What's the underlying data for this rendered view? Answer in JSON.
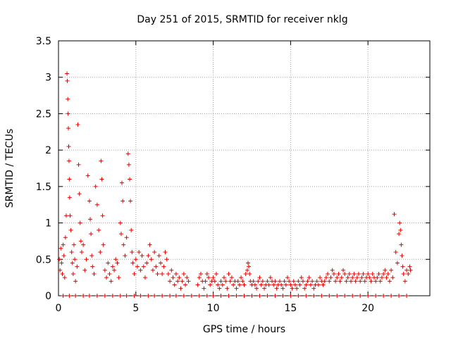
{
  "chart_data": {
    "type": "scatter",
    "title": "Day 251 of 2015, SRMTID for receiver nklg",
    "xlabel": "GPS time / hours",
    "ylabel": "SRMTID / TECUs",
    "xlim": [
      0,
      24
    ],
    "ylim": [
      0,
      3.5
    ],
    "xticks": [
      0,
      5,
      10,
      15,
      20
    ],
    "yticks": [
      0,
      0.5,
      1,
      1.5,
      2,
      2.5,
      3,
      3.5
    ],
    "xtick_labels": [
      "0",
      "5",
      "10",
      "15",
      "20"
    ],
    "ytick_labels": [
      "0",
      "0.5",
      "1",
      "1.5",
      "2",
      "2.5",
      "3",
      "3.5"
    ],
    "grid": true,
    "marker": "+",
    "marker_color": "#e60000",
    "series": [
      {
        "name": "SRMTID",
        "points": [
          [
            0.05,
            0.5
          ],
          [
            0.1,
            0.35
          ],
          [
            0.15,
            0.65
          ],
          [
            0.2,
            0.45
          ],
          [
            0.25,
            0.3
          ],
          [
            0.3,
            0.7
          ],
          [
            0.35,
            0.55
          ],
          [
            0.4,
            0.25
          ],
          [
            0.45,
            0.8
          ],
          [
            0.5,
            1.1
          ],
          [
            0.55,
            3.05
          ],
          [
            0.57,
            2.95
          ],
          [
            0.6,
            2.7
          ],
          [
            0.62,
            2.5
          ],
          [
            0.64,
            2.3
          ],
          [
            0.66,
            2.05
          ],
          [
            0.68,
            1.85
          ],
          [
            0.7,
            1.6
          ],
          [
            0.72,
            1.35
          ],
          [
            0.75,
            1.1
          ],
          [
            0.8,
            0.9
          ],
          [
            0.85,
            0.6
          ],
          [
            0.9,
            0.45
          ],
          [
            0.95,
            0.3
          ],
          [
            1.0,
            0.7
          ],
          [
            1.05,
            0.5
          ],
          [
            1.1,
            0.2
          ],
          [
            1.2,
            0.4
          ],
          [
            1.25,
            2.35
          ],
          [
            1.3,
            1.8
          ],
          [
            1.35,
            1.4
          ],
          [
            1.4,
            1.0
          ],
          [
            1.45,
            0.75
          ],
          [
            1.5,
            0.6
          ],
          [
            1.6,
            0.7
          ],
          [
            1.7,
            0.35
          ],
          [
            1.8,
            0.5
          ],
          [
            1.9,
            1.65
          ],
          [
            2.0,
            1.3
          ],
          [
            2.05,
            1.05
          ],
          [
            2.1,
            0.85
          ],
          [
            2.15,
            0.55
          ],
          [
            2.2,
            0.4
          ],
          [
            2.3,
            0.3
          ],
          [
            2.4,
            1.5
          ],
          [
            2.5,
            1.25
          ],
          [
            2.6,
            0.9
          ],
          [
            2.7,
            0.6
          ],
          [
            2.75,
            1.85
          ],
          [
            2.8,
            1.6
          ],
          [
            2.85,
            1.1
          ],
          [
            2.9,
            0.7
          ],
          [
            3.0,
            0.35
          ],
          [
            3.1,
            0.25
          ],
          [
            3.2,
            0.45
          ],
          [
            3.3,
            0.3
          ],
          [
            3.4,
            0.2
          ],
          [
            3.5,
            0.4
          ],
          [
            3.6,
            0.35
          ],
          [
            3.7,
            0.5
          ],
          [
            3.8,
            0.45
          ],
          [
            3.9,
            0.25
          ],
          [
            4.0,
            1.0
          ],
          [
            4.05,
            0.85
          ],
          [
            4.1,
            1.55
          ],
          [
            4.15,
            1.3
          ],
          [
            4.2,
            0.7
          ],
          [
            4.3,
            0.55
          ],
          [
            4.4,
            0.8
          ],
          [
            4.5,
            1.95
          ],
          [
            4.55,
            1.8
          ],
          [
            4.6,
            1.6
          ],
          [
            4.65,
            1.3
          ],
          [
            4.7,
            0.9
          ],
          [
            4.75,
            0.6
          ],
          [
            4.8,
            0.45
          ],
          [
            4.9,
            0.3
          ],
          [
            5.0,
            0.5
          ],
          [
            5.1,
            0.4
          ],
          [
            5.2,
            0.6
          ],
          [
            5.3,
            0.35
          ],
          [
            5.4,
            0.55
          ],
          [
            5.5,
            0.4
          ],
          [
            5.6,
            0.25
          ],
          [
            5.7,
            0.45
          ],
          [
            5.8,
            0.55
          ],
          [
            5.9,
            0.7
          ],
          [
            6.0,
            0.5
          ],
          [
            6.1,
            0.35
          ],
          [
            6.2,
            0.6
          ],
          [
            6.3,
            0.4
          ],
          [
            6.4,
            0.3
          ],
          [
            6.5,
            0.55
          ],
          [
            6.6,
            0.45
          ],
          [
            6.7,
            0.3
          ],
          [
            6.8,
            0.4
          ],
          [
            6.9,
            0.6
          ],
          [
            7.0,
            0.5
          ],
          [
            7.1,
            0.3
          ],
          [
            7.2,
            0.2
          ],
          [
            7.3,
            0.35
          ],
          [
            7.4,
            0.25
          ],
          [
            7.5,
            0.15
          ],
          [
            7.6,
            0.3
          ],
          [
            7.7,
            0.2
          ],
          [
            7.8,
            0.25
          ],
          [
            7.9,
            0.1
          ],
          [
            8.0,
            0.2
          ],
          [
            8.1,
            0.3
          ],
          [
            8.2,
            0.15
          ],
          [
            8.3,
            0.25
          ],
          [
            8.4,
            0.2
          ],
          [
            9.0,
            0.15
          ],
          [
            9.1,
            0.25
          ],
          [
            9.2,
            0.3
          ],
          [
            9.3,
            0.2
          ],
          [
            9.4,
            0.1
          ],
          [
            9.5,
            0.2
          ],
          [
            9.6,
            0.3
          ],
          [
            9.7,
            0.25
          ],
          [
            9.8,
            0.15
          ],
          [
            9.9,
            0.2
          ],
          [
            10.0,
            0.25
          ],
          [
            10.1,
            0.2
          ],
          [
            10.2,
            0.3
          ],
          [
            10.3,
            0.15
          ],
          [
            10.4,
            0.1
          ],
          [
            10.5,
            0.2
          ],
          [
            10.6,
            0.15
          ],
          [
            10.7,
            0.25
          ],
          [
            10.8,
            0.2
          ],
          [
            10.9,
            0.1
          ],
          [
            11.0,
            0.3
          ],
          [
            11.1,
            0.2
          ],
          [
            11.2,
            0.25
          ],
          [
            11.3,
            0.15
          ],
          [
            11.4,
            0.2
          ],
          [
            11.5,
            0.1
          ],
          [
            11.6,
            0.2
          ],
          [
            11.7,
            0.15
          ],
          [
            11.8,
            0.25
          ],
          [
            11.9,
            0.2
          ],
          [
            12.0,
            0.15
          ],
          [
            12.1,
            0.3
          ],
          [
            12.2,
            0.35
          ],
          [
            12.25,
            0.45
          ],
          [
            12.3,
            0.4
          ],
          [
            12.35,
            0.3
          ],
          [
            12.4,
            0.2
          ],
          [
            12.5,
            0.15
          ],
          [
            12.6,
            0.2
          ],
          [
            12.7,
            0.15
          ],
          [
            12.8,
            0.1
          ],
          [
            12.9,
            0.2
          ],
          [
            13.0,
            0.25
          ],
          [
            13.1,
            0.15
          ],
          [
            13.2,
            0.2
          ],
          [
            13.3,
            0.1
          ],
          [
            13.4,
            0.15
          ],
          [
            13.5,
            0.2
          ],
          [
            13.6,
            0.15
          ],
          [
            13.7,
            0.25
          ],
          [
            13.8,
            0.2
          ],
          [
            13.9,
            0.15
          ],
          [
            14.0,
            0.2
          ],
          [
            14.1,
            0.1
          ],
          [
            14.2,
            0.15
          ],
          [
            14.3,
            0.2
          ],
          [
            14.4,
            0.15
          ],
          [
            14.5,
            0.1
          ],
          [
            14.6,
            0.2
          ],
          [
            14.7,
            0.15
          ],
          [
            14.8,
            0.25
          ],
          [
            14.9,
            0.2
          ],
          [
            15.0,
            0.15
          ],
          [
            15.1,
            0.1
          ],
          [
            15.2,
            0.2
          ],
          [
            15.3,
            0.15
          ],
          [
            15.4,
            0.1
          ],
          [
            15.5,
            0.2
          ],
          [
            15.6,
            0.15
          ],
          [
            15.7,
            0.25
          ],
          [
            15.8,
            0.2
          ],
          [
            15.9,
            0.1
          ],
          [
            16.0,
            0.15
          ],
          [
            16.1,
            0.2
          ],
          [
            16.2,
            0.25
          ],
          [
            16.3,
            0.15
          ],
          [
            16.4,
            0.2
          ],
          [
            16.5,
            0.1
          ],
          [
            16.6,
            0.15
          ],
          [
            16.7,
            0.2
          ],
          [
            16.8,
            0.15
          ],
          [
            16.9,
            0.25
          ],
          [
            17.0,
            0.2
          ],
          [
            17.1,
            0.15
          ],
          [
            17.2,
            0.2
          ],
          [
            17.3,
            0.25
          ],
          [
            17.4,
            0.3
          ],
          [
            17.5,
            0.2
          ],
          [
            17.6,
            0.25
          ],
          [
            17.7,
            0.35
          ],
          [
            17.8,
            0.3
          ],
          [
            17.9,
            0.2
          ],
          [
            18.0,
            0.25
          ],
          [
            18.1,
            0.3
          ],
          [
            18.2,
            0.2
          ],
          [
            18.3,
            0.25
          ],
          [
            18.4,
            0.35
          ],
          [
            18.5,
            0.3
          ],
          [
            18.6,
            0.2
          ],
          [
            18.7,
            0.25
          ],
          [
            18.8,
            0.3
          ],
          [
            18.9,
            0.2
          ],
          [
            19.0,
            0.25
          ],
          [
            19.1,
            0.3
          ],
          [
            19.2,
            0.2
          ],
          [
            19.3,
            0.25
          ],
          [
            19.4,
            0.3
          ],
          [
            19.5,
            0.2
          ],
          [
            19.6,
            0.25
          ],
          [
            19.7,
            0.3
          ],
          [
            19.8,
            0.2
          ],
          [
            19.9,
            0.25
          ],
          [
            20.0,
            0.3
          ],
          [
            20.1,
            0.25
          ],
          [
            20.2,
            0.2
          ],
          [
            20.3,
            0.3
          ],
          [
            20.4,
            0.25
          ],
          [
            20.5,
            0.2
          ],
          [
            20.6,
            0.25
          ],
          [
            20.7,
            0.3
          ],
          [
            20.8,
            0.2
          ],
          [
            20.9,
            0.25
          ],
          [
            21.0,
            0.3
          ],
          [
            21.1,
            0.35
          ],
          [
            21.2,
            0.25
          ],
          [
            21.3,
            0.3
          ],
          [
            21.4,
            0.2
          ],
          [
            21.5,
            0.35
          ],
          [
            21.6,
            0.25
          ],
          [
            21.7,
            1.12
          ],
          [
            21.8,
            0.6
          ],
          [
            21.9,
            0.45
          ],
          [
            22.0,
            0.85
          ],
          [
            22.05,
            1.0
          ],
          [
            22.1,
            0.9
          ],
          [
            22.15,
            0.7
          ],
          [
            22.2,
            0.55
          ],
          [
            22.25,
            0.4
          ],
          [
            22.3,
            0.3
          ],
          [
            22.4,
            0.2
          ],
          [
            22.5,
            0.35
          ],
          [
            22.6,
            0.3
          ],
          [
            22.7,
            0.4
          ],
          [
            22.75,
            0.35
          ],
          [
            0.3,
            0
          ],
          [
            0.7,
            0
          ],
          [
            1.1,
            0
          ],
          [
            1.6,
            0
          ],
          [
            2.0,
            0
          ],
          [
            2.5,
            0
          ],
          [
            3.0,
            0
          ],
          [
            3.5,
            0
          ],
          [
            4.0,
            0
          ],
          [
            4.4,
            0
          ],
          [
            4.9,
            0
          ],
          [
            5.3,
            0
          ],
          [
            5.8,
            0
          ],
          [
            6.2,
            0
          ],
          [
            6.7,
            0
          ],
          [
            7.2,
            0
          ],
          [
            7.6,
            0
          ],
          [
            8.1,
            0
          ],
          [
            8.6,
            0
          ],
          [
            9.1,
            0
          ],
          [
            9.6,
            0
          ],
          [
            10.0,
            0
          ],
          [
            10.5,
            0
          ],
          [
            11.0,
            0
          ],
          [
            11.5,
            0
          ],
          [
            12.0,
            0
          ],
          [
            12.5,
            0
          ],
          [
            13.0,
            0
          ],
          [
            13.5,
            0
          ],
          [
            14.0,
            0
          ],
          [
            14.5,
            0
          ],
          [
            15.0,
            0
          ],
          [
            15.5,
            0
          ],
          [
            16.0,
            0
          ],
          [
            16.5,
            0
          ],
          [
            17.0,
            0
          ],
          [
            17.5,
            0
          ],
          [
            18.0,
            0
          ],
          [
            18.5,
            0
          ],
          [
            19.0,
            0
          ],
          [
            19.5,
            0
          ],
          [
            20.0,
            0
          ],
          [
            20.5,
            0
          ],
          [
            21.0,
            0
          ],
          [
            21.5,
            0
          ],
          [
            22.0,
            0
          ],
          [
            22.5,
            0
          ]
        ]
      }
    ]
  }
}
